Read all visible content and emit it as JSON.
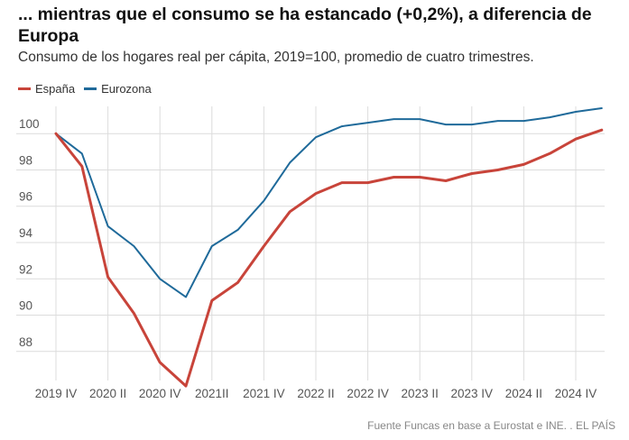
{
  "header": {
    "title": "... mientras que el consumo se ha estancado (+0,2%), a diferencia de Europa",
    "subtitle": "Consumo de los hogares real per cápita, 2019=100, promedio de cuatro trimestres."
  },
  "footer": {
    "source": "Fuente Funcas en base a Eurostat e INE. . EL PAÍS"
  },
  "chart_data": {
    "type": "line",
    "title": "... mientras que el consumo se ha estancado (+0,2%), a diferencia de Europa",
    "subtitle": "Consumo de los hogares real per cápita, 2019=100, promedio de cuatro trimestres.",
    "xlabel": "",
    "ylabel": "",
    "x": [
      "2019 IV",
      "2020 I",
      "2020 II",
      "2020 III",
      "2020 IV",
      "2021 I",
      "2021 II",
      "2021 III",
      "2021 IV",
      "2022 I",
      "2022 II",
      "2022 III",
      "2022 IV",
      "2023 I",
      "2023 II",
      "2023 III",
      "2023 IV",
      "2024 I",
      "2024 II",
      "2024 III",
      "2024 IV",
      "2025 I"
    ],
    "x_tick_labels": [
      "2019 IV",
      "2020 II",
      "2020 IV",
      "2021II",
      "2021 IV",
      "2022 II",
      "2022 IV",
      "2023 II",
      "2023 IV",
      "2024 II",
      "2024 IV"
    ],
    "yticks": [
      88,
      90,
      92,
      94,
      96,
      98,
      100
    ],
    "ylim": [
      86.5,
      101.5
    ],
    "grid": true,
    "legend_position": "top-left",
    "series": [
      {
        "name": "España",
        "color": "#c8443a",
        "values": [
          100.0,
          98.2,
          92.1,
          90.1,
          87.4,
          86.1,
          90.8,
          91.8,
          93.8,
          95.7,
          96.7,
          97.3,
          97.3,
          97.6,
          97.6,
          97.4,
          97.8,
          98.0,
          98.3,
          98.9,
          99.7,
          100.2
        ]
      },
      {
        "name": "Eurozona",
        "color": "#1f6a9a",
        "values": [
          100.0,
          98.9,
          94.9,
          93.8,
          92.0,
          91.0,
          93.8,
          94.7,
          96.3,
          98.4,
          99.8,
          100.4,
          100.6,
          100.8,
          100.8,
          100.5,
          100.5,
          100.7,
          100.7,
          100.9,
          101.2,
          101.4
        ]
      }
    ]
  }
}
